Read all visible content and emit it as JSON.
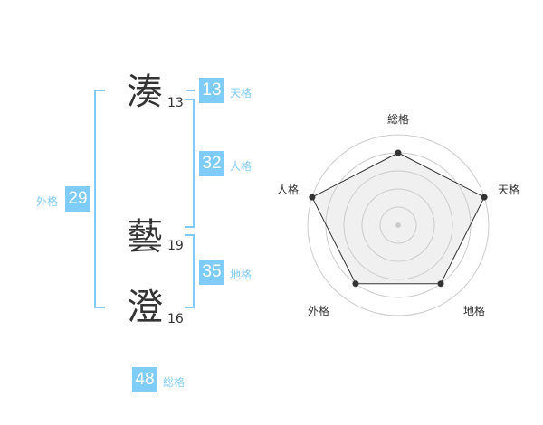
{
  "name": {
    "chars": [
      {
        "char": "湊",
        "strokes": "13"
      },
      {
        "char": "藝",
        "strokes": "19"
      },
      {
        "char": "澄",
        "strokes": "16"
      }
    ]
  },
  "kaku": {
    "tenkaku": {
      "value": "13",
      "label": "天格"
    },
    "jinkaku": {
      "value": "32",
      "label": "人格"
    },
    "chikaku": {
      "value": "35",
      "label": "地格"
    },
    "gaikaku": {
      "value": "29",
      "label": "外格"
    },
    "soukaku": {
      "value": "48",
      "label": "総格"
    }
  },
  "colors": {
    "accent": "#80ccf8",
    "text": "#333333",
    "radar_fill": "#f0f0f0",
    "radar_line": "#333333",
    "ring": "#cccccc"
  },
  "chart_data": {
    "type": "radar",
    "axes": [
      "総格",
      "天格",
      "地格",
      "外格",
      "人格"
    ],
    "values": [
      4,
      5,
      4,
      4,
      5
    ],
    "max": 5
  }
}
